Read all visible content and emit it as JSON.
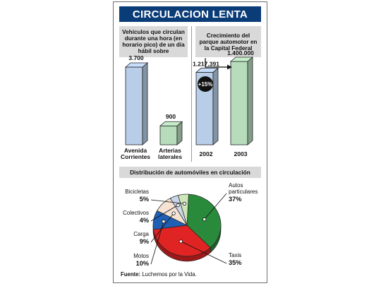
{
  "title": "CIRCULACION LENTA",
  "source_label": "Fuente:",
  "source_text": "Luchemos por la Vida.",
  "colors": {
    "title_bg": "#0a3c78",
    "header_bg": "#d9d9d9"
  },
  "chart_data": [
    {
      "type": "bar",
      "title": "Vehículos que circulan durante una hora (en horario pico) de un día hábil sobre",
      "categories": [
        "Avenida Corrientes",
        "Arterias laterales"
      ],
      "values": [
        3700,
        900
      ],
      "value_labels": [
        "3.700",
        "900"
      ],
      "colors": [
        "#b8cde8",
        "#b7dcbc"
      ],
      "ylim": [
        0,
        3700
      ]
    },
    {
      "type": "bar",
      "title": "Crecimiento del parque automotor en la Capital Federal",
      "categories": [
        "2002",
        "2003"
      ],
      "values": [
        1217391,
        1400000
      ],
      "value_labels": [
        "1.217.391",
        "1.400.000"
      ],
      "colors": [
        "#b8cde8",
        "#b7dcbc"
      ],
      "ylim": [
        0,
        1400000
      ],
      "annotation": "+15%"
    },
    {
      "type": "pie",
      "title": "Distribución de automóviles en circulación",
      "slices": [
        {
          "label": "Autos particulares",
          "value": 37,
          "value_label": "37%",
          "color": "#2a8a3c"
        },
        {
          "label": "Taxis",
          "value": 35,
          "value_label": "35%",
          "color": "#e02424"
        },
        {
          "label": "Motos",
          "value": 10,
          "value_label": "10%",
          "color": "#2060b4"
        },
        {
          "label": "Carga",
          "value": 9,
          "value_label": "9%",
          "color": "#f6e2d2"
        },
        {
          "label": "Colectivos",
          "value": 4,
          "value_label": "4%",
          "color": "#c9d6ea"
        },
        {
          "label": "Bicicletas",
          "value": 5,
          "value_label": "5%",
          "color": "#cfe6b8"
        }
      ]
    }
  ]
}
